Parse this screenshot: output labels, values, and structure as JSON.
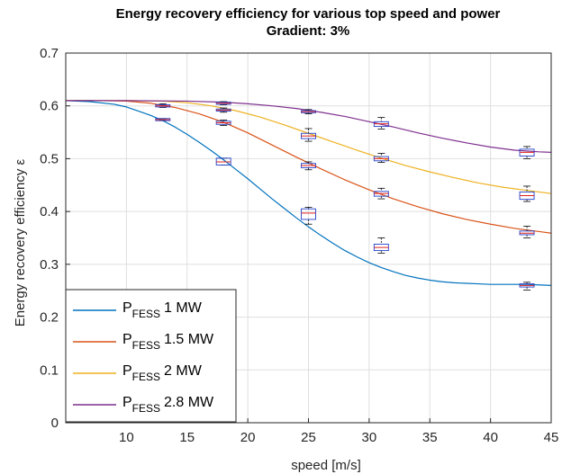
{
  "chart_data": {
    "type": "line",
    "title": "Energy recovery efficiency for various top speed and power",
    "subtitle": "Gradient: 3%",
    "xlabel": "speed [m/s]",
    "ylabel": "Energy recovery efficiency ε",
    "xlim": [
      5,
      45
    ],
    "ylim": [
      0,
      0.7
    ],
    "xticks": [
      "10",
      "15",
      "20",
      "25",
      "30",
      "35",
      "40",
      "45"
    ],
    "yticks": [
      "0",
      "0.1",
      "0.2",
      "0.3",
      "0.4",
      "0.5",
      "0.6",
      "0.7"
    ],
    "grid": true,
    "legend_position": "bottom-left",
    "series": [
      {
        "legend_main": "P",
        "legend_sub": "FESS",
        "legend_value": "1 MW",
        "color": "#0072BD",
        "x": [
          5,
          7,
          9,
          10,
          11,
          12,
          13,
          14,
          15,
          16,
          17,
          18,
          19,
          20,
          21,
          22,
          23,
          24,
          25,
          26,
          27,
          28,
          29,
          30,
          31,
          32,
          33,
          34,
          35,
          36,
          37,
          38,
          39,
          40,
          41,
          42,
          43,
          44,
          45
        ],
        "y": [
          0.61,
          0.608,
          0.603,
          0.598,
          0.59,
          0.582,
          0.572,
          0.56,
          0.546,
          0.531,
          0.515,
          0.498,
          0.48,
          0.462,
          0.443,
          0.424,
          0.406,
          0.388,
          0.371,
          0.355,
          0.34,
          0.326,
          0.314,
          0.303,
          0.294,
          0.286,
          0.279,
          0.274,
          0.27,
          0.267,
          0.265,
          0.264,
          0.263,
          0.262,
          0.262,
          0.262,
          0.262,
          0.261,
          0.26
        ],
        "boxes": [
          {
            "x": 13,
            "q1": 0.572,
            "median": 0.574,
            "q3": 0.576,
            "lo": 0.572,
            "hi": 0.576
          },
          {
            "x": 18,
            "q1": 0.488,
            "median": 0.494,
            "q3": 0.501,
            "lo": 0.488,
            "hi": 0.501
          },
          {
            "x": 25,
            "q1": 0.385,
            "median": 0.397,
            "q3": 0.405,
            "lo": 0.376,
            "hi": 0.408
          },
          {
            "x": 31,
            "q1": 0.326,
            "median": 0.332,
            "q3": 0.338,
            "lo": 0.321,
            "hi": 0.35
          },
          {
            "x": 43,
            "q1": 0.257,
            "median": 0.26,
            "q3": 0.263,
            "lo": 0.251,
            "hi": 0.266
          }
        ]
      },
      {
        "legend_main": "P",
        "legend_sub": "FESS",
        "legend_value": "1.5 MW",
        "color": "#D95319",
        "x": [
          5,
          8,
          10,
          12,
          14,
          16,
          18,
          20,
          22,
          24,
          26,
          28,
          30,
          32,
          34,
          36,
          38,
          40,
          42,
          44,
          45
        ],
        "y": [
          0.61,
          0.61,
          0.609,
          0.605,
          0.597,
          0.585,
          0.569,
          0.549,
          0.526,
          0.503,
          0.481,
          0.46,
          0.441,
          0.424,
          0.409,
          0.396,
          0.385,
          0.376,
          0.368,
          0.362,
          0.359
        ],
        "boxes": [
          {
            "x": 13,
            "q1": 0.598,
            "median": 0.6,
            "q3": 0.602,
            "lo": 0.597,
            "hi": 0.604
          },
          {
            "x": 18,
            "q1": 0.565,
            "median": 0.568,
            "q3": 0.571,
            "lo": 0.563,
            "hi": 0.573
          },
          {
            "x": 25,
            "q1": 0.483,
            "median": 0.487,
            "q3": 0.491,
            "lo": 0.479,
            "hi": 0.494
          },
          {
            "x": 31,
            "q1": 0.429,
            "median": 0.434,
            "q3": 0.438,
            "lo": 0.424,
            "hi": 0.444
          },
          {
            "x": 43,
            "q1": 0.356,
            "median": 0.359,
            "q3": 0.363,
            "lo": 0.35,
            "hi": 0.372
          }
        ]
      },
      {
        "legend_main": "P",
        "legend_sub": "FESS",
        "legend_value": "2 MW",
        "color": "#EDB120",
        "x": [
          5,
          10,
          13,
          15,
          17,
          19,
          21,
          23,
          25,
          27,
          29,
          31,
          33,
          35,
          37,
          39,
          41,
          43,
          45
        ],
        "y": [
          0.61,
          0.61,
          0.609,
          0.606,
          0.6,
          0.591,
          0.579,
          0.564,
          0.548,
          0.532,
          0.516,
          0.501,
          0.487,
          0.475,
          0.464,
          0.454,
          0.446,
          0.44,
          0.434
        ],
        "boxes": [
          {
            "x": 18,
            "q1": 0.59,
            "median": 0.592,
            "q3": 0.594,
            "lo": 0.588,
            "hi": 0.596
          },
          {
            "x": 25,
            "q1": 0.538,
            "median": 0.543,
            "q3": 0.548,
            "lo": 0.533,
            "hi": 0.557
          },
          {
            "x": 31,
            "q1": 0.496,
            "median": 0.5,
            "q3": 0.504,
            "lo": 0.493,
            "hi": 0.51
          },
          {
            "x": 43,
            "q1": 0.423,
            "median": 0.43,
            "q3": 0.437,
            "lo": 0.419,
            "hi": 0.448
          }
        ]
      },
      {
        "legend_main": "P",
        "legend_sub": "FESS",
        "legend_value": "2.8 MW",
        "color": "#7E2F8E",
        "x": [
          5,
          10,
          15,
          18,
          20,
          22,
          24,
          26,
          28,
          30,
          32,
          34,
          36,
          38,
          40,
          42,
          44,
          45
        ],
        "y": [
          0.61,
          0.61,
          0.609,
          0.607,
          0.604,
          0.6,
          0.595,
          0.588,
          0.58,
          0.57,
          0.56,
          0.549,
          0.539,
          0.53,
          0.522,
          0.516,
          0.513,
          0.512
        ],
        "boxes": [
          {
            "x": 18,
            "q1": 0.603,
            "median": 0.605,
            "q3": 0.607,
            "lo": 0.602,
            "hi": 0.608
          },
          {
            "x": 25,
            "q1": 0.587,
            "median": 0.589,
            "q3": 0.591,
            "lo": 0.585,
            "hi": 0.593
          },
          {
            "x": 31,
            "q1": 0.561,
            "median": 0.566,
            "q3": 0.57,
            "lo": 0.556,
            "hi": 0.578
          },
          {
            "x": 43,
            "q1": 0.505,
            "median": 0.512,
            "q3": 0.518,
            "lo": 0.5,
            "hi": 0.523
          }
        ]
      }
    ]
  }
}
